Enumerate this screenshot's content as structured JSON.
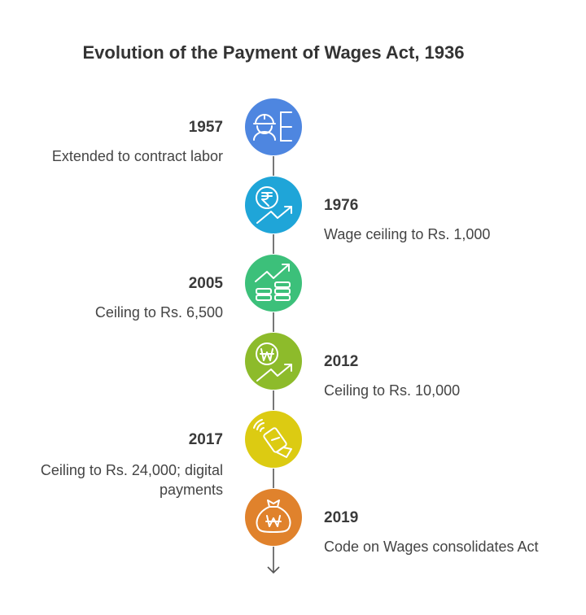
{
  "title": "Evolution of the Payment of Wages Act, 1936",
  "events": [
    {
      "year": "1957",
      "description": "Extended to contract labor",
      "icon": "contract-worker-icon",
      "color": "#4e86e0"
    },
    {
      "year": "1976",
      "description": "Wage ceiling to Rs. 1,000",
      "icon": "rupee-growth-icon",
      "color": "#1fa5d8"
    },
    {
      "year": "2005",
      "description": "Ceiling to Rs. 6,500",
      "icon": "money-stack-growth-icon",
      "color": "#3cc07a"
    },
    {
      "year": "2012",
      "description": "Ceiling to Rs. 10,000",
      "icon": "won-growth-icon",
      "color": "#8dbb2b"
    },
    {
      "year": "2017",
      "description": "Ceiling to Rs. 24,000; digital payments",
      "icon": "contactless-payment-icon",
      "color": "#dccb12"
    },
    {
      "year": "2019",
      "description": "Code on Wages consolidates Act",
      "icon": "money-bag-icon",
      "color": "#e0822c"
    }
  ]
}
